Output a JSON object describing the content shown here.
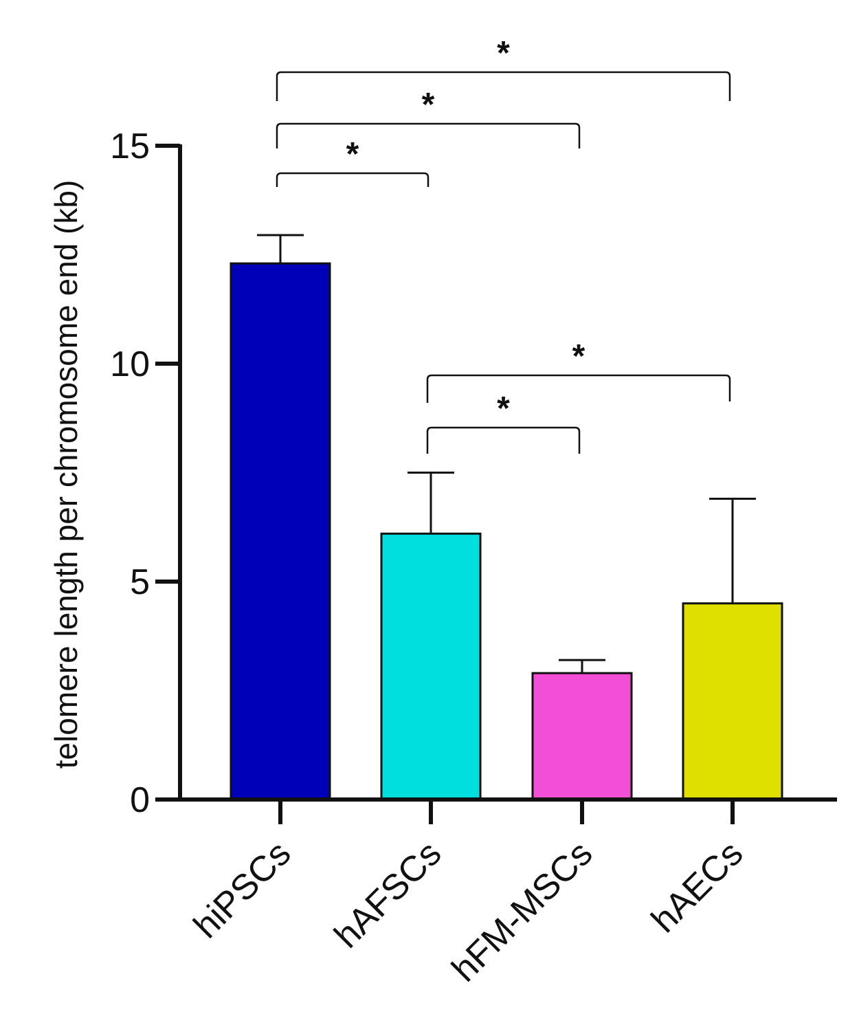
{
  "chart_data": {
    "type": "bar",
    "title": "",
    "xlabel": "",
    "ylabel": "telomere length per chromosome end (kb)",
    "ylim": [
      0,
      15
    ],
    "yticks": [
      0,
      5,
      10,
      15
    ],
    "ytick_labels": [
      "0",
      "5",
      "10",
      "15"
    ],
    "categories": [
      "hiPSCs",
      "hAFSCs",
      "hFM-MSCs",
      "hAECs"
    ],
    "values": [
      12.3,
      6.1,
      2.9,
      4.5
    ],
    "errors": [
      0.65,
      1.4,
      0.3,
      2.4
    ],
    "colors": [
      "#0000b8",
      "#00dede",
      "#f24fd6",
      "#e0e000"
    ],
    "grid": false,
    "significance": [
      {
        "from": "hiPSCs",
        "to": "hAFSCs",
        "label": "*"
      },
      {
        "from": "hiPSCs",
        "to": "hFM-MSCs",
        "label": "*"
      },
      {
        "from": "hiPSCs",
        "to": "hAECs",
        "label": "*"
      },
      {
        "from": "hAFSCs",
        "to": "hFM-MSCs",
        "label": "*"
      },
      {
        "from": "hAFSCs",
        "to": "hAECs",
        "label": "*"
      }
    ]
  }
}
